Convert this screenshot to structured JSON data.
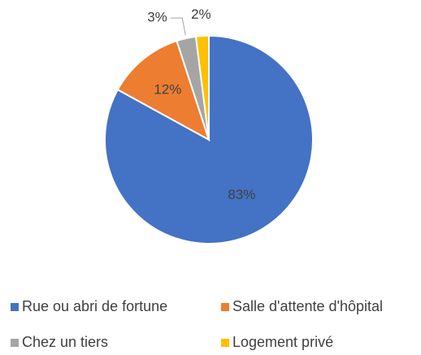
{
  "chart_data": {
    "type": "pie",
    "categories": [
      "Rue ou abri de fortune",
      "Salle d'attente d'hôpital",
      "Chez un tiers",
      "Logement privé"
    ],
    "values": [
      83,
      12,
      3,
      2
    ],
    "value_labels": [
      "83%",
      "12%",
      "3%",
      "2%"
    ],
    "colors": [
      "#4472c4",
      "#ed7d31",
      "#a5a5a5",
      "#ffc000"
    ],
    "legend": "bottom"
  }
}
